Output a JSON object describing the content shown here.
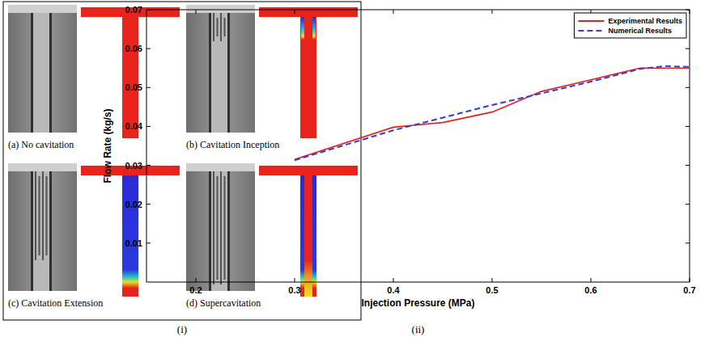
{
  "chart_data": {
    "type": "line",
    "x_label": "Injection Pressure (MPa)",
    "y_label": "Flow Rate (kg/s)",
    "xlim": [
      0.15,
      0.7
    ],
    "xticks": [
      0.2,
      0.3,
      0.4,
      0.5,
      0.6,
      0.7
    ],
    "ylim": [
      0,
      0.07
    ],
    "yticks": [
      0.01,
      0.02,
      0.03,
      0.04,
      0.05,
      0.06,
      0.07
    ],
    "legend": "top-right",
    "series": [
      {
        "name": "Experimental Results",
        "color": "#e8201c",
        "line_style": "solid",
        "x": [
          0.3,
          0.4,
          0.45,
          0.5,
          0.55,
          0.6,
          0.65,
          0.7
        ],
        "values": [
          0.0315,
          0.0398,
          0.041,
          0.0437,
          0.049,
          0.052,
          0.055,
          0.055
        ]
      },
      {
        "name": "Numerical Results",
        "color": "#3a3ad0",
        "line_style": "dashed",
        "x": [
          0.3,
          0.4,
          0.5,
          0.55,
          0.6,
          0.65,
          0.675,
          0.7
        ],
        "values": [
          0.0313,
          0.039,
          0.0455,
          0.0485,
          0.0515,
          0.0548,
          0.0555,
          0.0553
        ]
      }
    ]
  },
  "figure": {
    "left_label": "(i)",
    "right_label": "(ii)",
    "images": [
      {
        "caption": "(a) No cavitation"
      },
      {
        "caption": "(b) Cavitation Inception"
      },
      {
        "caption": "(c) Cavitation Extension"
      },
      {
        "caption": "(d) Supercavitation"
      }
    ]
  }
}
